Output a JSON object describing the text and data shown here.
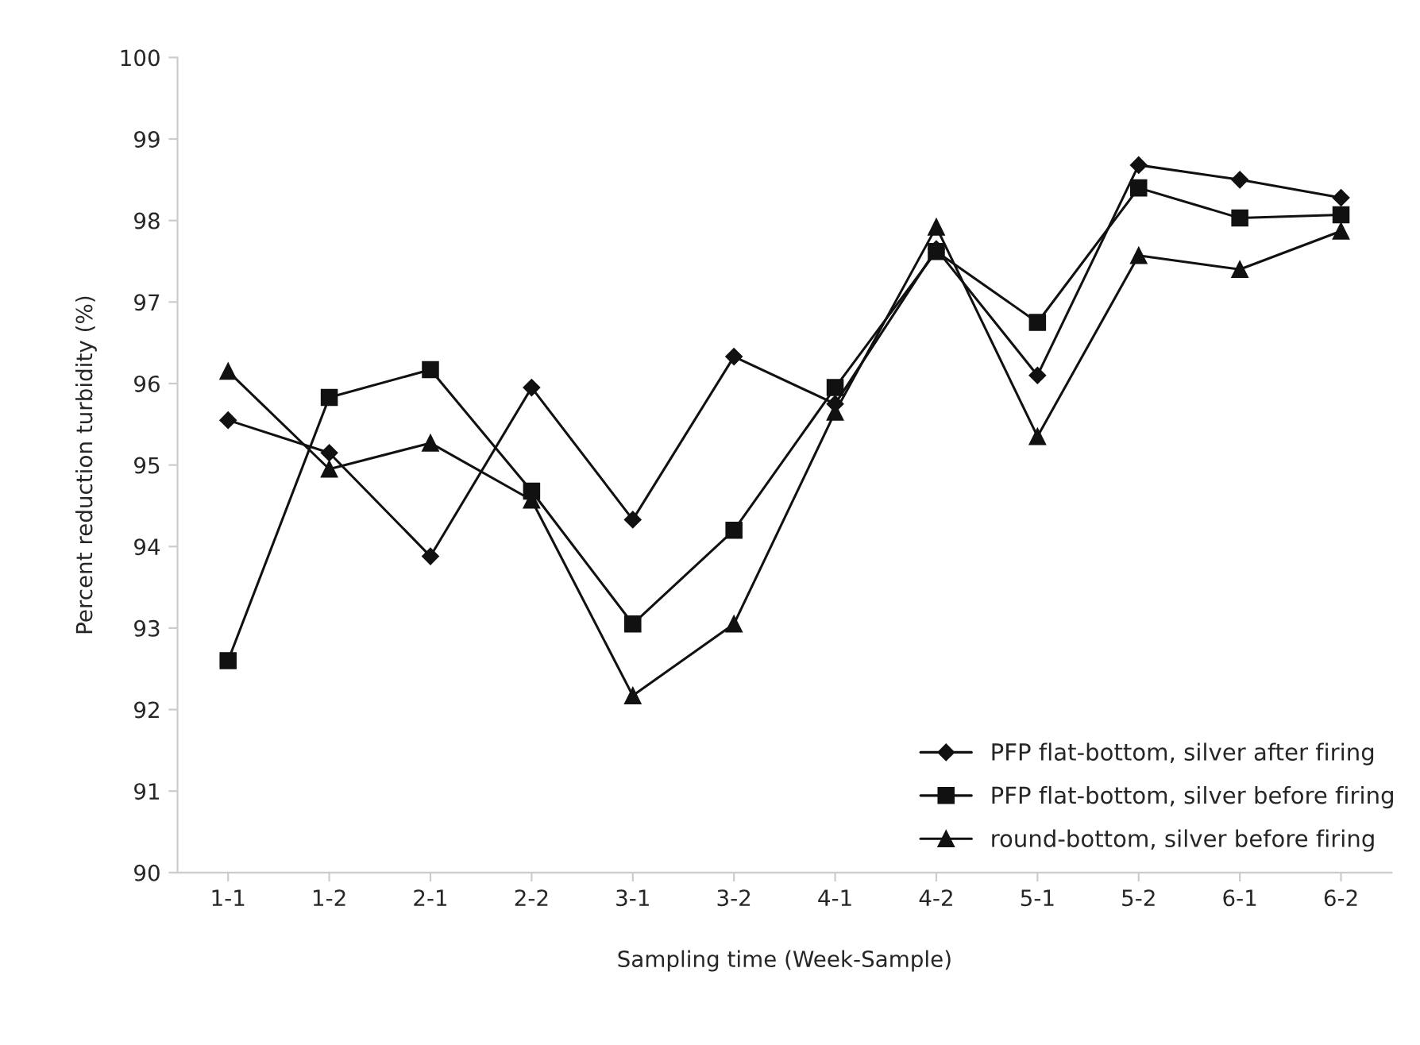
{
  "chart_data": {
    "type": "line",
    "xlabel": "Sampling time (Week-Sample)",
    "ylabel": "Percent reduction turbidity (%)",
    "categories": [
      "1-1",
      "1-2",
      "2-1",
      "2-2",
      "3-1",
      "3-2",
      "4-1",
      "4-2",
      "5-1",
      "5-2",
      "6-1",
      "6-2"
    ],
    "series": [
      {
        "name": "PFP flat-bottom, silver after firing",
        "color": "#111111",
        "marker": "diamond",
        "values": [
          95.55,
          95.15,
          93.88,
          95.95,
          94.33,
          96.33,
          95.75,
          97.65,
          96.1,
          98.68,
          98.5,
          98.28
        ]
      },
      {
        "name": "PFP flat-bottom, silver before firing",
        "color": "#111111",
        "marker": "square",
        "values": [
          92.6,
          95.83,
          96.17,
          94.68,
          93.05,
          94.2,
          95.95,
          97.62,
          96.75,
          98.4,
          98.03,
          98.07
        ]
      },
      {
        "name": "round-bottom, silver before firing",
        "color": "#111111",
        "marker": "triangle",
        "values": [
          96.15,
          94.95,
          95.27,
          94.57,
          92.17,
          93.05,
          95.65,
          97.92,
          95.35,
          97.57,
          97.4,
          97.87
        ]
      }
    ],
    "ylim": [
      90,
      100
    ],
    "yticks": [
      90,
      91,
      92,
      93,
      94,
      95,
      96,
      97,
      98,
      99,
      100
    ],
    "grid": false,
    "legend": "bottom right",
    "line_style": "solid"
  }
}
